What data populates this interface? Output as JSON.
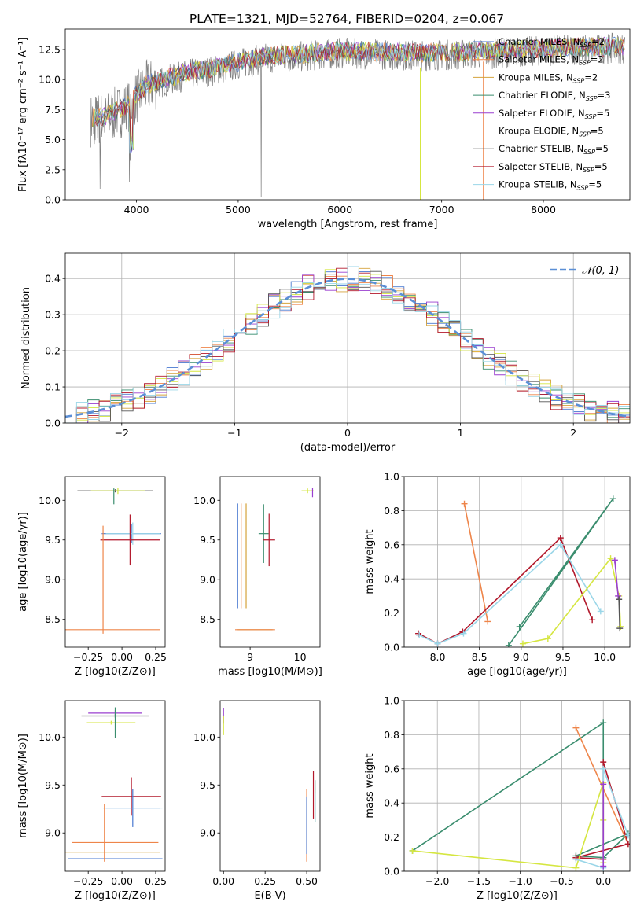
{
  "figure_title": "PLATE=1321, MJD=52764, FIBERID=0204, z=0.067",
  "chart_data": [
    {
      "type": "line",
      "title": "PLATE=1321, MJD=52764, FIBERID=0204, z=0.067",
      "xlabel": "wavelength [Angstrom, rest frame]",
      "ylabel": "Flux [fλ10⁻¹⁷ erg cm⁻² s⁻¹ A⁻¹]",
      "xlim": [
        3300,
        8850
      ],
      "ylim": [
        0,
        14.2
      ],
      "xticks": [
        4000,
        5000,
        6000,
        7000,
        8000
      ],
      "yticks": [
        0.0,
        2.5,
        5.0,
        7.5,
        10.0,
        12.5
      ],
      "grid": false,
      "legend_position": "top-right",
      "spectrum_continuum": {
        "x": [
          3550,
          3700,
          3900,
          4100,
          4300,
          4500,
          4800,
          5000,
          5300,
          5600,
          6000,
          6400,
          6800,
          7200,
          7600,
          8000,
          8400,
          8800
        ],
        "y": [
          6.6,
          6.8,
          7.6,
          9.4,
          9.9,
          10.4,
          10.8,
          11.3,
          11.8,
          11.9,
          12.2,
          12.1,
          12.0,
          12.1,
          12.2,
          12.4,
          12.5,
          12.6
        ]
      },
      "series": [
        {
          "name": "Chabrier MILES, N_SSP=2",
          "color": "#4878d0"
        },
        {
          "name": "Salpeter MILES, N_SSP=2",
          "color": "#ee854a"
        },
        {
          "name": "Kroupa MILES, N_SSP=2",
          "color": "#d5a23b"
        },
        {
          "name": "Chabrier ELODIE, N_SSP=3",
          "color": "#3a8d6e"
        },
        {
          "name": "Salpeter ELODIE, N_SSP=5",
          "color": "#9a3fcf"
        },
        {
          "name": "Kroupa ELODIE, N_SSP=5",
          "color": "#d5e640"
        },
        {
          "name": "Chabrier STELIB, N_SSP=5",
          "color": "#555555"
        },
        {
          "name": "Salpeter STELIB, N_SSP=5",
          "color": "#b2182b"
        },
        {
          "name": "Kroupa STELIB, N_SSP=5",
          "color": "#9ad6e8"
        }
      ]
    },
    {
      "type": "line",
      "xlabel": "(data-model)/error",
      "ylabel": "Normed distribution",
      "xlim": [
        -2.5,
        2.5
      ],
      "ylim": [
        0,
        0.47
      ],
      "xticks": [
        -2,
        -1,
        0,
        1,
        2
      ],
      "yticks": [
        0.0,
        0.1,
        0.2,
        0.3,
        0.4
      ],
      "grid": true,
      "legend_position": "top-right",
      "legend": "𝒩(0, 1)",
      "histogram_bin_width": 0.1,
      "histogram_x_start": -2.5,
      "gaussian": {
        "mean": 0,
        "sigma": 1,
        "color": "#5b8fd6"
      }
    },
    {
      "type": "scatter",
      "xlabel": "Z [log10(Z/Z⊙)]",
      "ylabel": "age  [log10(age/yr)]",
      "xlim": [
        -0.42,
        0.32
      ],
      "ylim": [
        8.15,
        10.3
      ],
      "xticks": [
        -0.25,
        0.0,
        0.25
      ],
      "yticks": [
        8.5,
        9.0,
        9.5,
        10.0
      ],
      "points": [
        {
          "x": -0.05,
          "y": 10.12,
          "xerr": 0.28,
          "yerr": 0.02,
          "c": 6
        },
        {
          "x": -0.03,
          "y": 10.12,
          "xerr": 0.2,
          "yerr": 0.04,
          "c": 5
        },
        {
          "x": -0.06,
          "y": 10.05,
          "xerr": 0.0,
          "yerr": 0.1,
          "c": 3
        },
        {
          "x": 0.07,
          "y": 9.58,
          "xerr": 0.22,
          "yerr": 0.12,
          "c": 0
        },
        {
          "x": 0.08,
          "y": 9.58,
          "xerr": 0.2,
          "yerr": 0.14,
          "c": 8
        },
        {
          "x": 0.06,
          "y": 9.5,
          "xerr": 0.22,
          "yerr": 0.32,
          "c": 7
        },
        {
          "x": -0.14,
          "y": 8.37,
          "xerr": 0.42,
          "yerr": 0.0,
          "c": 1
        },
        {
          "x": -0.14,
          "y": 9.0,
          "xerr": 0.0,
          "yerr": 0.68,
          "c": 1
        }
      ]
    },
    {
      "type": "scatter",
      "xlabel": "mass [log10(M/M⊙)]",
      "xlim": [
        8.4,
        10.4
      ],
      "ylim": [
        8.15,
        10.3
      ],
      "xticks": [
        9,
        10
      ],
      "yticks": [
        8.5,
        9.0,
        9.5,
        10.0
      ],
      "points": [
        {
          "x": 10.15,
          "y": 10.12,
          "xerr": 0.12,
          "yerr": 0.03,
          "c": 5
        },
        {
          "x": 10.25,
          "y": 10.1,
          "xerr": 0.0,
          "yerr": 0.06,
          "c": 4
        },
        {
          "x": 9.27,
          "y": 9.58,
          "xerr": 0.1,
          "yerr": 0.37,
          "c": 3
        },
        {
          "x": 9.38,
          "y": 9.5,
          "xerr": 0.12,
          "yerr": 0.33,
          "c": 7
        },
        {
          "x": 8.75,
          "y": 9.3,
          "xerr": 0.0,
          "yerr": 0.66,
          "c": 0
        },
        {
          "x": 8.82,
          "y": 9.3,
          "xerr": 0.0,
          "yerr": 0.66,
          "c": 1
        },
        {
          "x": 8.92,
          "y": 9.3,
          "xerr": 0.0,
          "yerr": 0.66,
          "c": 2
        },
        {
          "x": 9.1,
          "y": 8.37,
          "xerr": 0.35,
          "yerr": 0.0,
          "c": 2
        },
        {
          "x": 9.1,
          "y": 8.37,
          "xerr": 0.4,
          "yerr": 0.0,
          "c": 1
        }
      ]
    },
    {
      "type": "line",
      "xlabel": "age  [log10(age/yr)]",
      "ylabel": "mass weight",
      "xlim": [
        7.6,
        10.3
      ],
      "ylim": [
        0,
        1.0
      ],
      "xticks": [
        8.0,
        8.5,
        9.0,
        9.5,
        10.0
      ],
      "yticks": [
        0.0,
        0.2,
        0.4,
        0.6,
        0.8,
        1.0
      ],
      "grid": true,
      "series": [
        {
          "c": 1,
          "x": [
            8.32,
            8.6
          ],
          "y": [
            0.84,
            0.15
          ]
        },
        {
          "c": 3,
          "x": [
            8.85,
            10.1,
            8.98
          ],
          "y": [
            0.01,
            0.87,
            0.12
          ]
        },
        {
          "c": 7,
          "x": [
            7.77,
            8.0,
            8.3,
            9.47,
            9.85
          ],
          "y": [
            0.08,
            0.02,
            0.09,
            0.64,
            0.16
          ]
        },
        {
          "c": 8,
          "x": [
            7.78,
            8.0,
            8.31,
            9.47,
            9.95
          ],
          "y": [
            0.07,
            0.02,
            0.08,
            0.6,
            0.21
          ]
        },
        {
          "c": 5,
          "x": [
            9.02,
            9.32,
            10.07,
            10.17,
            10.19
          ],
          "y": [
            0.02,
            0.05,
            0.52,
            0.3,
            0.12
          ]
        },
        {
          "c": 4,
          "x": [
            10.12,
            10.16
          ],
          "y": [
            0.51,
            0.3
          ]
        },
        {
          "c": 6,
          "x": [
            10.17,
            10.18
          ],
          "y": [
            0.28,
            0.11
          ]
        }
      ]
    },
    {
      "type": "scatter",
      "xlabel": "Z [log10(Z/Z⊙)]",
      "ylabel": "mass [log10(M/M⊙)]",
      "xlim": [
        -0.42,
        0.32
      ],
      "ylim": [
        8.6,
        10.38
      ],
      "xticks": [
        -0.25,
        0.0,
        0.25
      ],
      "yticks": [
        9.0,
        9.5,
        10.0
      ],
      "points": [
        {
          "x": -0.05,
          "y": 10.25,
          "xerr": 0.2,
          "yerr": 0.03,
          "c": 4
        },
        {
          "x": -0.05,
          "y": 10.22,
          "xerr": 0.25,
          "yerr": 0.02,
          "c": 6
        },
        {
          "x": -0.08,
          "y": 10.15,
          "xerr": 0.18,
          "yerr": 0.02,
          "c": 5
        },
        {
          "x": -0.05,
          "y": 10.15,
          "xerr": 0.0,
          "yerr": 0.16,
          "c": 3
        },
        {
          "x": 0.07,
          "y": 9.38,
          "xerr": 0.22,
          "yerr": 0.2,
          "c": 7
        },
        {
          "x": 0.08,
          "y": 9.26,
          "xerr": 0.2,
          "yerr": 0.2,
          "c": 0
        },
        {
          "x": 0.08,
          "y": 9.26,
          "xerr": 0.22,
          "yerr": 0.0,
          "c": 8
        },
        {
          "x": -0.05,
          "y": 8.9,
          "xerr": 0.32,
          "yerr": 0.0,
          "c": 1
        },
        {
          "x": -0.1,
          "y": 8.8,
          "xerr": 0.38,
          "yerr": 0.0,
          "c": 2
        },
        {
          "x": -0.05,
          "y": 8.73,
          "xerr": 0.35,
          "yerr": 0.0,
          "c": 0
        },
        {
          "x": -0.13,
          "y": 9.0,
          "xerr": 0.0,
          "yerr": 0.3,
          "c": 1
        }
      ]
    },
    {
      "type": "scatter",
      "xlabel": "E(B-V)",
      "xlim": [
        -0.02,
        0.58
      ],
      "ylim": [
        8.6,
        10.38
      ],
      "xticks": [
        0.0,
        0.25,
        0.5
      ],
      "yticks": [
        9.0,
        9.5,
        10.0
      ],
      "points": [
        {
          "x": 0.0,
          "y": 10.22,
          "xerr": 0.0,
          "yerr": 0.08,
          "c": 4
        },
        {
          "x": 0.0,
          "y": 10.12,
          "xerr": 0.0,
          "yerr": 0.1,
          "c": 5
        },
        {
          "x": 0.5,
          "y": 9.08,
          "xerr": 0.0,
          "yerr": 0.38,
          "c": 1
        },
        {
          "x": 0.5,
          "y": 9.08,
          "xerr": 0.0,
          "yerr": 0.3,
          "c": 0
        },
        {
          "x": 0.54,
          "y": 9.4,
          "xerr": 0.0,
          "yerr": 0.25,
          "c": 7
        },
        {
          "x": 0.55,
          "y": 9.33,
          "xerr": 0.0,
          "yerr": 0.22,
          "c": 3
        },
        {
          "x": 0.55,
          "y": 9.27,
          "xerr": 0.0,
          "yerr": 0.15,
          "c": 8
        }
      ]
    },
    {
      "type": "line",
      "xlabel": "Z [log10(Z/Z⊙)]",
      "ylabel": "mass weight",
      "xlim": [
        -2.4,
        0.32
      ],
      "ylim": [
        0,
        1.0
      ],
      "xticks": [
        -2.0,
        -1.5,
        -1.0,
        -0.5,
        0.0
      ],
      "yticks": [
        0.0,
        0.2,
        0.4,
        0.6,
        0.8,
        1.0
      ],
      "grid": true,
      "series": [
        {
          "c": 3,
          "x": [
            -2.3,
            0.0,
            0.0,
            0.3,
            -0.33,
            0.0
          ],
          "y": [
            0.12,
            0.87,
            0.08,
            0.22,
            0.09,
            0.08
          ]
        },
        {
          "c": 1,
          "x": [
            -0.33,
            0.3
          ],
          "y": [
            0.84,
            0.16
          ]
        },
        {
          "c": 7,
          "x": [
            -0.33,
            0.0,
            0.0,
            0.3,
            -0.33
          ],
          "y": [
            0.08,
            0.07,
            0.64,
            0.16,
            0.08
          ]
        },
        {
          "c": 5,
          "x": [
            -2.3,
            -0.33,
            0.0,
            0.0,
            0.0
          ],
          "y": [
            0.12,
            0.02,
            0.52,
            0.3,
            0.05
          ]
        },
        {
          "c": 8,
          "x": [
            -0.33,
            0.0,
            0.0,
            0.3
          ],
          "y": [
            0.07,
            0.02,
            0.6,
            0.21
          ]
        },
        {
          "c": 4,
          "x": [
            0.0,
            0.0
          ],
          "y": [
            0.51,
            0.03
          ]
        }
      ]
    }
  ]
}
